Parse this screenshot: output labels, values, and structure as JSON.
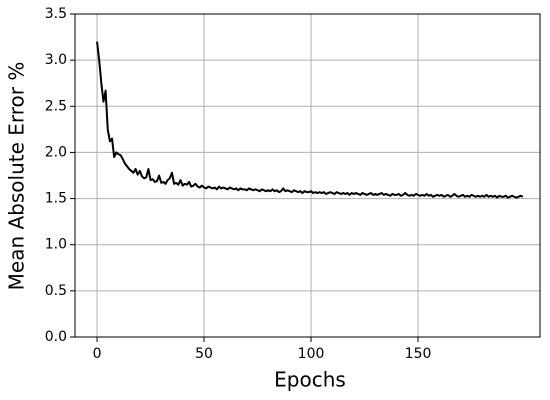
{
  "chart_data": {
    "type": "line",
    "xlabel": "Epochs",
    "ylabel": "Mean Absolute Error %",
    "x": [
      0,
      1,
      2,
      3,
      4,
      5,
      6,
      7,
      8,
      9,
      10,
      11,
      12,
      13,
      14,
      15,
      16,
      17,
      18,
      19,
      20,
      21,
      22,
      23,
      24,
      25,
      26,
      27,
      28,
      29,
      30,
      31,
      32,
      33,
      34,
      35,
      36,
      37,
      38,
      39,
      40,
      41,
      42,
      43,
      44,
      45,
      46,
      47,
      48,
      49,
      50,
      51,
      52,
      53,
      54,
      55,
      56,
      57,
      58,
      59,
      60,
      61,
      62,
      63,
      64,
      65,
      66,
      67,
      68,
      69,
      70,
      71,
      72,
      73,
      74,
      75,
      76,
      77,
      78,
      79,
      80,
      81,
      82,
      83,
      84,
      85,
      86,
      87,
      88,
      89,
      90,
      91,
      92,
      93,
      94,
      95,
      96,
      97,
      98,
      99,
      100,
      101,
      102,
      103,
      104,
      105,
      106,
      107,
      108,
      109,
      110,
      111,
      112,
      113,
      114,
      115,
      116,
      117,
      118,
      119,
      120,
      121,
      122,
      123,
      124,
      125,
      126,
      127,
      128,
      129,
      130,
      131,
      132,
      133,
      134,
      135,
      136,
      137,
      138,
      139,
      140,
      141,
      142,
      143,
      144,
      145,
      146,
      147,
      148,
      149,
      150,
      151,
      152,
      153,
      154,
      155,
      156,
      157,
      158,
      159,
      160,
      161,
      162,
      163,
      164,
      165,
      166,
      167,
      168,
      169,
      170,
      171,
      172,
      173,
      174,
      175,
      176,
      177,
      178,
      179,
      180,
      181,
      182,
      183,
      184,
      185,
      186,
      187,
      188,
      189,
      190,
      191,
      192,
      193,
      194,
      195,
      196,
      197,
      198,
      199
    ],
    "values": [
      3.2,
      3.0,
      2.75,
      2.55,
      2.67,
      2.25,
      2.12,
      2.15,
      1.95,
      2.0,
      1.98,
      1.97,
      1.93,
      1.88,
      1.85,
      1.82,
      1.8,
      1.78,
      1.82,
      1.76,
      1.8,
      1.74,
      1.72,
      1.73,
      1.82,
      1.7,
      1.71,
      1.68,
      1.69,
      1.75,
      1.67,
      1.68,
      1.66,
      1.7,
      1.72,
      1.78,
      1.66,
      1.67,
      1.65,
      1.7,
      1.64,
      1.66,
      1.65,
      1.68,
      1.63,
      1.64,
      1.66,
      1.63,
      1.62,
      1.64,
      1.62,
      1.61,
      1.63,
      1.62,
      1.61,
      1.62,
      1.6,
      1.63,
      1.61,
      1.62,
      1.61,
      1.6,
      1.62,
      1.61,
      1.6,
      1.61,
      1.59,
      1.61,
      1.6,
      1.6,
      1.59,
      1.61,
      1.6,
      1.59,
      1.6,
      1.59,
      1.58,
      1.6,
      1.59,
      1.58,
      1.59,
      1.58,
      1.6,
      1.58,
      1.59,
      1.57,
      1.58,
      1.61,
      1.58,
      1.59,
      1.58,
      1.57,
      1.59,
      1.58,
      1.57,
      1.58,
      1.56,
      1.58,
      1.57,
      1.57,
      1.58,
      1.56,
      1.57,
      1.56,
      1.57,
      1.56,
      1.57,
      1.55,
      1.56,
      1.57,
      1.56,
      1.55,
      1.57,
      1.56,
      1.55,
      1.56,
      1.55,
      1.56,
      1.54,
      1.56,
      1.55,
      1.56,
      1.55,
      1.54,
      1.56,
      1.55,
      1.54,
      1.55,
      1.56,
      1.54,
      1.55,
      1.54,
      1.55,
      1.56,
      1.54,
      1.55,
      1.54,
      1.53,
      1.55,
      1.54,
      1.54,
      1.55,
      1.53,
      1.54,
      1.56,
      1.54,
      1.53,
      1.54,
      1.53,
      1.55,
      1.54,
      1.53,
      1.54,
      1.53,
      1.55,
      1.53,
      1.54,
      1.52,
      1.53,
      1.54,
      1.53,
      1.54,
      1.52,
      1.53,
      1.54,
      1.52,
      1.53,
      1.55,
      1.53,
      1.52,
      1.53,
      1.54,
      1.52,
      1.53,
      1.52,
      1.54,
      1.53,
      1.52,
      1.53,
      1.52,
      1.53,
      1.52,
      1.54,
      1.52,
      1.53,
      1.52,
      1.53,
      1.51,
      1.53,
      1.52,
      1.52,
      1.53,
      1.51,
      1.52,
      1.53,
      1.52,
      1.51,
      1.52,
      1.53,
      1.52
    ],
    "color": "#000000",
    "xlim": [
      -10.3,
      207
    ],
    "xticks": [
      0,
      50,
      100,
      150
    ],
    "ylim": [
      0,
      3.5
    ],
    "yticks": [
      {
        "value": 0,
        "label": "0.0"
      },
      {
        "value": 0.5,
        "label": "0.5"
      },
      {
        "value": 1,
        "label": "1.0"
      },
      {
        "value": 1.5,
        "label": "1.5"
      },
      {
        "value": 2,
        "label": "2.0"
      },
      {
        "value": 2.5,
        "label": "2.5"
      },
      {
        "value": 3,
        "label": "3.0"
      },
      {
        "value": 3.5,
        "label": "3.5"
      }
    ],
    "grid": true
  }
}
